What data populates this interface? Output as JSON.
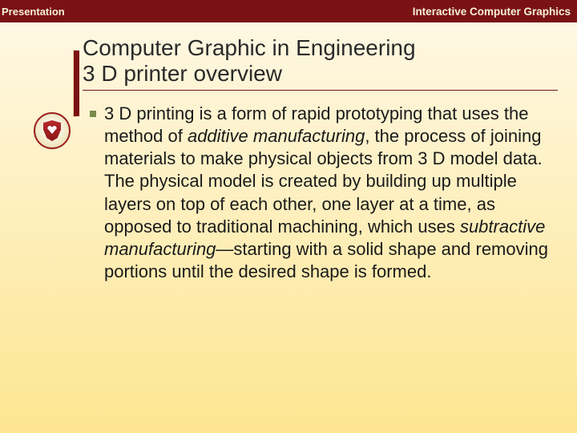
{
  "header": {
    "left": "Presentation",
    "right": "Interactive Computer Graphics"
  },
  "title": {
    "line1": "Computer Graphic in Engineering",
    "line2": "3 D printer overview"
  },
  "body": {
    "pre": " 3 D printing is a form of rapid prototyping that uses the method of ",
    "it1": "additive manufacturing",
    "mid": ", the process of joining materials to make physical objects from 3 D model data. The physical model is created by building up multiple layers on top of each other, one layer at a time, as opposed to traditional machining, which uses ",
    "it2": "subtractive manufacturing",
    "post": "—starting with a solid shape and removing portions until the desired shape is formed."
  },
  "colors": {
    "header_bg": "#7a1214",
    "header_text": "#f5f0d8",
    "accent": "#7a1214",
    "bullet": "#7a8a4a",
    "title": "#2a2a2a",
    "body": "#1a1a1a",
    "bg_top": "#fef9e8",
    "bg_bottom": "#fde590"
  }
}
